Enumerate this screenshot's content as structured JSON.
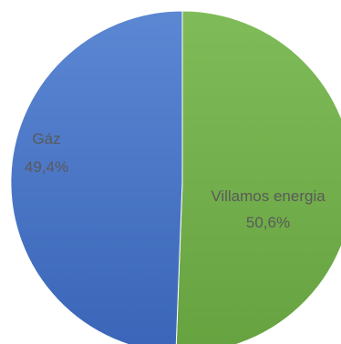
{
  "chart_data": {
    "type": "pie",
    "categories": [
      "Gáz",
      "Villamos energia"
    ],
    "values": [
      49.4,
      50.6
    ],
    "value_labels": [
      "49,4%",
      "50,6%"
    ],
    "colors": [
      "#4472C4",
      "#70AD47"
    ],
    "start": "12 o'clock",
    "direction": "clockwise",
    "order": [
      "Villamos energia",
      "Gáz"
    ],
    "legend": "none"
  }
}
